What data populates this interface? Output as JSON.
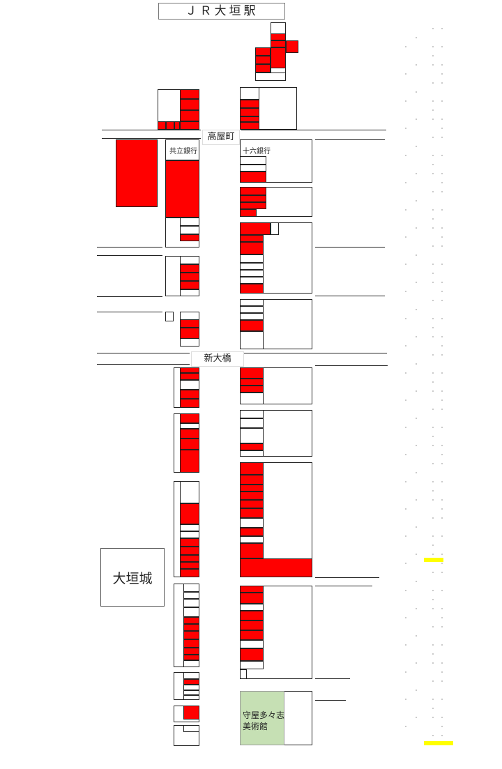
{
  "title": "ＪＲ大垣駅",
  "streets": {
    "takayacho": "高屋町",
    "shin_ohashi": "新大橋"
  },
  "banks": {
    "kyoritsu": "共立銀行",
    "juroku": "十六銀行"
  },
  "landmarks": {
    "castle": "大垣城",
    "museum_line1": "守屋多々志",
    "museum_line2": "美術館"
  },
  "colors": {
    "shop": "#ff0000",
    "museum": "#c6e0b4",
    "highlight": "#ffff00"
  }
}
